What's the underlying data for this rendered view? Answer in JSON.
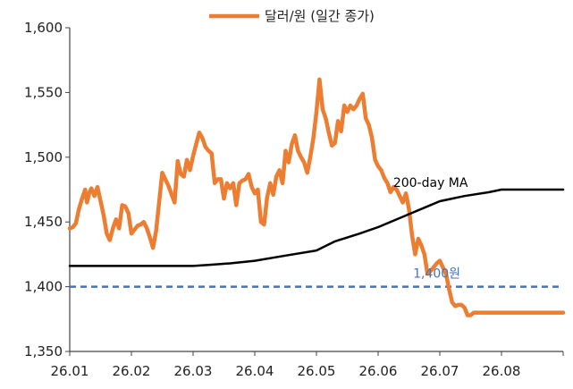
{
  "chart_data": {
    "type": "line",
    "legend": {
      "label": "달러/원 (일간 종가)",
      "placement": "top-center"
    },
    "y_ticks": [
      "1,600",
      "1,550",
      "1,500",
      "1,450",
      "1,400",
      "1,350"
    ],
    "ylim": [
      1350,
      1600
    ],
    "x_tick_labels": [
      "26.01",
      "26.02",
      "26.03",
      "26.04",
      "26.05",
      "26.06",
      "26.07",
      "26.08"
    ],
    "xlim": [
      0,
      8
    ],
    "grid": false,
    "series": [
      {
        "name": "달러/원 (일간 종가)",
        "color": "#ED7D31",
        "x": [
          0.0,
          0.05,
          0.1,
          0.15,
          0.2,
          0.25,
          0.28,
          0.32,
          0.35,
          0.4,
          0.45,
          0.5,
          0.55,
          0.6,
          0.65,
          0.7,
          0.75,
          0.8,
          0.85,
          0.9,
          0.95,
          1.0,
          1.05,
          1.1,
          1.15,
          1.2,
          1.25,
          1.3,
          1.35,
          1.4,
          1.5,
          1.6,
          1.7,
          1.75,
          1.8,
          1.85,
          1.9,
          1.95,
          2.0,
          2.05,
          2.1,
          2.15,
          2.2,
          2.25,
          2.3,
          2.35,
          2.4,
          2.45,
          2.5,
          2.55,
          2.6,
          2.65,
          2.7,
          2.75,
          2.8,
          2.85,
          2.9,
          2.95,
          3.0,
          3.05,
          3.1,
          3.15,
          3.2,
          3.25,
          3.3,
          3.35,
          3.4,
          3.45,
          3.5,
          3.55,
          3.6,
          3.65,
          3.7,
          3.75,
          3.8,
          3.85,
          3.9,
          3.95,
          4.0,
          4.05,
          4.1,
          4.15,
          4.2,
          4.25,
          4.3,
          4.35,
          4.4,
          4.45,
          4.5,
          4.55,
          4.6,
          4.65,
          4.7,
          4.75,
          4.8,
          4.85,
          4.9,
          4.95,
          5.0,
          5.05,
          5.1,
          5.15,
          5.2,
          5.25,
          5.3,
          5.35,
          5.4,
          5.45,
          5.5,
          5.55,
          5.6,
          5.65,
          5.7,
          5.75,
          5.8,
          5.85,
          5.9,
          5.95,
          6.0,
          6.05,
          6.1,
          6.15,
          6.2,
          6.25,
          6.3,
          6.35,
          6.4,
          6.45,
          6.5,
          6.55,
          6.6,
          6.65,
          6.7,
          6.75,
          6.8,
          6.85,
          6.9,
          6.95,
          7.0,
          7.05,
          7.1,
          7.15,
          7.2,
          7.25,
          7.3,
          7.35,
          7.4,
          7.45,
          7.5,
          7.55,
          7.6,
          7.65,
          7.7,
          7.75,
          7.8,
          7.85,
          7.9,
          7.95,
          8.0
        ],
        "y": [
          1445,
          1446,
          1449,
          1460,
          1468,
          1475,
          1465,
          1473,
          1476,
          1470,
          1477,
          1466,
          1455,
          1441,
          1436,
          1445,
          1452,
          1445,
          1463,
          1462,
          1457,
          1441,
          1444,
          1447,
          1448,
          1450,
          1445,
          1438,
          1430,
          1443,
          1488,
          1478,
          1465,
          1497,
          1487,
          1485,
          1498,
          1490,
          1501,
          1510,
          1519,
          1515,
          1508,
          1505,
          1503,
          1480,
          1483,
          1483,
          1468,
          1480,
          1476,
          1480,
          1463,
          1480,
          1482,
          1483,
          1487,
          1477,
          1472,
          1475,
          1450,
          1448,
          1469,
          1480,
          1471,
          1485,
          1490,
          1480,
          1505,
          1496,
          1510,
          1517,
          1505,
          1500,
          1496,
          1488,
          1500,
          1515,
          1535,
          1560,
          1537,
          1530,
          1519,
          1509,
          1511,
          1528,
          1520,
          1540,
          1535,
          1540,
          1537,
          1540,
          1545,
          1549,
          1530,
          1525,
          1515,
          1498,
          1493,
          1490,
          1484,
          1480,
          1473,
          1477,
          1475,
          1470,
          1465,
          1472,
          1460,
          1440,
          1425,
          1437,
          1432,
          1425,
          1410,
          1412,
          1415,
          1418,
          1420,
          1415,
          1410,
          1398,
          1388,
          1385,
          1386,
          1386,
          1384,
          1378,
          1378,
          1380,
          1380,
          1380,
          1380,
          1380,
          1380,
          1380,
          1380,
          1380,
          1380,
          1380,
          1380,
          1380,
          1380,
          1380,
          1380,
          1380,
          1380,
          1380,
          1380,
          1380,
          1380,
          1380,
          1380,
          1380,
          1380,
          1380,
          1380,
          1380,
          1380
        ]
      },
      {
        "name": "200-day MA",
        "color": "#000000",
        "x": [
          0.0,
          0.5,
          1.0,
          1.5,
          2.0,
          2.3,
          2.6,
          3.0,
          3.5,
          4.0,
          4.3,
          4.7,
          5.0,
          5.5,
          5.8,
          6.0,
          6.4,
          6.8,
          7.0,
          7.4,
          7.7,
          8.0
        ],
        "y": [
          1416,
          1416,
          1416,
          1416,
          1416,
          1417,
          1418,
          1420,
          1424,
          1428,
          1435,
          1441,
          1446,
          1456,
          1462,
          1466,
          1470,
          1473,
          1475,
          1475,
          1475,
          1475
        ]
      }
    ],
    "annotations": [
      {
        "text": "200-day MA",
        "x": 5.85,
        "y": 1477,
        "color": "#000000"
      },
      {
        "text": "1,400원",
        "x": 5.95,
        "y": 1407,
        "color": "#4472C4"
      }
    ],
    "reference_lines": [
      {
        "y": 1400,
        "color": "#4472C4",
        "style": "dashed"
      }
    ]
  }
}
